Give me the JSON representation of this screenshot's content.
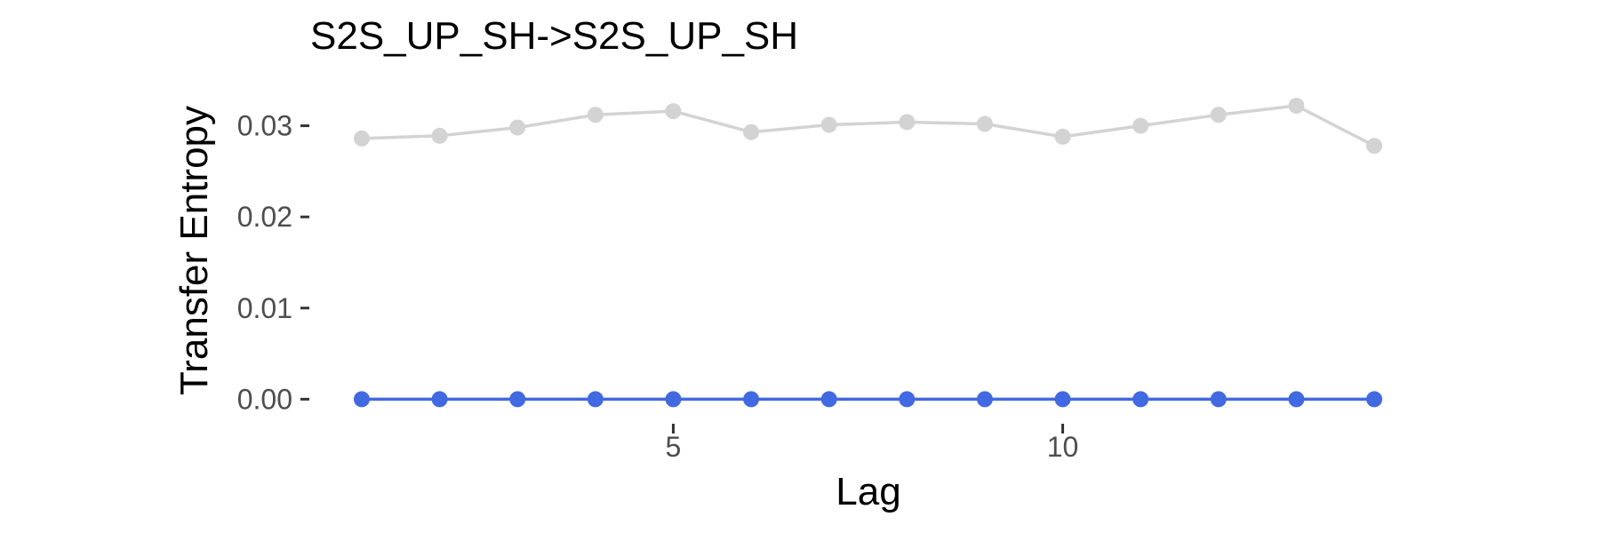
{
  "chart_data": {
    "type": "line",
    "title": "S2S_UP_SH->S2S_UP_SH",
    "xlabel": "Lag",
    "ylabel": "Transfer Entropy",
    "x": [
      1,
      2,
      3,
      4,
      5,
      6,
      7,
      8,
      9,
      10,
      11,
      12,
      13,
      14
    ],
    "xlim": [
      0.35,
      14.65
    ],
    "ylim": [
      -0.0024,
      0.036
    ],
    "x_ticks": [
      5,
      10
    ],
    "x_tick_labels": [
      "5",
      "10"
    ],
    "y_ticks": [
      0,
      0.01,
      0.02,
      0.03
    ],
    "y_tick_labels": [
      "0.00",
      "0.01",
      "0.02",
      "0.03"
    ],
    "grid": false,
    "series": [
      {
        "color": "#d3d3d3",
        "values": [
          0.0286,
          0.0289,
          0.0298,
          0.0312,
          0.0316,
          0.0293,
          0.0301,
          0.0304,
          0.0302,
          0.0288,
          0.03,
          0.0312,
          0.0322,
          0.0278
        ]
      },
      {
        "color": "#4169e1",
        "values": [
          0,
          0,
          0,
          0,
          0,
          0,
          0,
          0,
          0,
          0,
          0,
          0,
          0,
          0
        ]
      }
    ]
  }
}
